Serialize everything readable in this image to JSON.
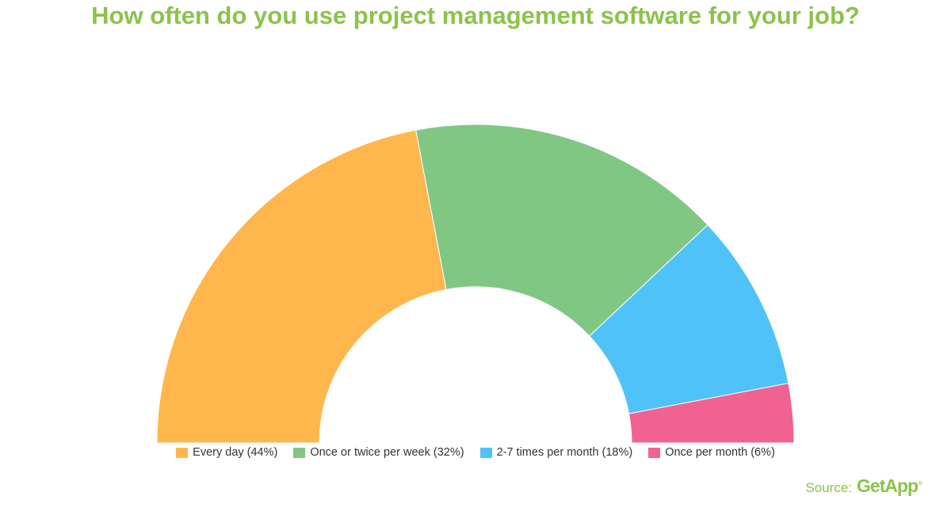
{
  "title": "How often do you use project management software for your job?",
  "chart_data": {
    "type": "pie",
    "variant": "semi-donut",
    "series": [
      {
        "label": "Every day (44%)",
        "value": 44,
        "color": "#ffb74d"
      },
      {
        "label": "Once or twice per week (32%)",
        "value": 32,
        "color": "#81c784"
      },
      {
        "label": "2-7 times per month (18%)",
        "value": 18,
        "color": "#4fc3f7"
      },
      {
        "label": "Once per month (6%)",
        "value": 6,
        "color": "#f06292"
      }
    ],
    "legend_position": "bottom"
  },
  "source": {
    "label": "Source:",
    "brand": "GetApp",
    "mark": "®"
  },
  "colors": {
    "accent": "#8bc34a"
  }
}
